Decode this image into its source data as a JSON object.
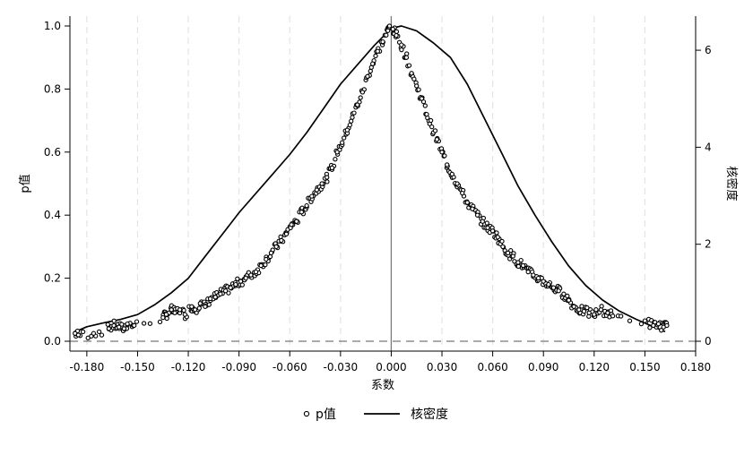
{
  "chart_data": {
    "type": "scatter+line",
    "xlabel": "系数",
    "ylabel_left": "p值",
    "ylabel_right": "核密度",
    "x_range": [
      -0.19,
      0.18
    ],
    "y_left_range": [
      0,
      1.0
    ],
    "y_right_range": [
      0,
      6.5
    ],
    "x_ticks": [
      -0.18,
      -0.15,
      -0.12,
      -0.09,
      -0.06,
      -0.03,
      0.0,
      0.03,
      0.06,
      0.09,
      0.12,
      0.15,
      0.18
    ],
    "x_tick_labels": [
      "-0.180",
      "-0.150",
      "-0.120",
      "-0.090",
      "-0.060",
      "-0.030",
      "0.000",
      "0.030",
      "0.060",
      "0.090",
      "0.120",
      "0.150",
      "0.180"
    ],
    "y_left_ticks": [
      0,
      0.2,
      0.4,
      0.6,
      0.8,
      1.0
    ],
    "y_left_tick_labels": [
      "0.0",
      "0.2",
      "0.4",
      "0.6",
      "0.8",
      "1.0"
    ],
    "y_right_ticks": [
      0,
      2,
      4,
      6
    ],
    "y_right_tick_labels": [
      "0",
      "2",
      "4",
      "6"
    ],
    "grid": "vertical dashed",
    "reference_lines": {
      "vertical_x": 0.0,
      "horizontal_y": 0.0
    },
    "legend": {
      "placement": "bottom-center",
      "entries": [
        {
          "label": "p值",
          "marker": "hollow-circle"
        },
        {
          "label": "核密度",
          "marker": "line"
        }
      ]
    },
    "scatter": {
      "name": "p值",
      "left_samples": [
        [
          -0.187,
          0.025
        ],
        [
          -0.185,
          0.02
        ],
        [
          -0.176,
          0.025
        ],
        [
          -0.167,
          0.04
        ],
        [
          -0.164,
          0.05
        ],
        [
          -0.161,
          0.045
        ],
        [
          -0.158,
          0.04
        ],
        [
          -0.156,
          0.055
        ],
        [
          -0.152,
          0.05
        ],
        [
          -0.135,
          0.075
        ],
        [
          -0.133,
          0.085
        ],
        [
          -0.13,
          0.1
        ],
        [
          -0.128,
          0.09
        ],
        [
          -0.125,
          0.1
        ],
        [
          -0.122,
          0.085
        ],
        [
          -0.118,
          0.11
        ],
        [
          -0.116,
          0.1
        ],
        [
          -0.113,
          0.12
        ],
        [
          -0.11,
          0.11
        ],
        [
          -0.107,
          0.135
        ],
        [
          -0.104,
          0.14
        ],
        [
          -0.101,
          0.15
        ],
        [
          -0.098,
          0.16
        ],
        [
          -0.095,
          0.17
        ],
        [
          -0.092,
          0.18
        ],
        [
          -0.089,
          0.19
        ],
        [
          -0.086,
          0.2
        ],
        [
          -0.083,
          0.21
        ],
        [
          -0.08,
          0.22
        ],
        [
          -0.077,
          0.24
        ],
        [
          -0.074,
          0.26
        ],
        [
          -0.071,
          0.28
        ],
        [
          -0.068,
          0.3
        ],
        [
          -0.065,
          0.32
        ],
        [
          -0.062,
          0.34
        ],
        [
          -0.059,
          0.37
        ],
        [
          -0.056,
          0.38
        ],
        [
          -0.053,
          0.41
        ],
        [
          -0.05,
          0.43
        ],
        [
          -0.047,
          0.46
        ],
        [
          -0.044,
          0.48
        ],
        [
          -0.041,
          0.5
        ],
        [
          -0.038,
          0.52
        ],
        [
          -0.035,
          0.55
        ],
        [
          -0.032,
          0.6
        ],
        [
          -0.029,
          0.63
        ],
        [
          -0.026,
          0.67
        ],
        [
          -0.023,
          0.71
        ],
        [
          -0.02,
          0.75
        ],
        [
          -0.017,
          0.79
        ],
        [
          -0.014,
          0.84
        ],
        [
          -0.011,
          0.88
        ],
        [
          -0.008,
          0.92
        ],
        [
          -0.005,
          0.95
        ],
        [
          -0.002,
          0.985
        ],
        [
          -0.001,
          1.0
        ]
      ],
      "right_samples": [
        [
          0.001,
          0.99
        ],
        [
          0.003,
          0.97
        ],
        [
          0.006,
          0.94
        ],
        [
          0.009,
          0.9
        ],
        [
          0.012,
          0.85
        ],
        [
          0.015,
          0.81
        ],
        [
          0.018,
          0.77
        ],
        [
          0.021,
          0.72
        ],
        [
          0.024,
          0.68
        ],
        [
          0.027,
          0.64
        ],
        [
          0.03,
          0.6
        ],
        [
          0.033,
          0.56
        ],
        [
          0.036,
          0.53
        ],
        [
          0.039,
          0.5
        ],
        [
          0.042,
          0.47
        ],
        [
          0.045,
          0.44
        ],
        [
          0.048,
          0.42
        ],
        [
          0.051,
          0.4
        ],
        [
          0.054,
          0.38
        ],
        [
          0.057,
          0.36
        ],
        [
          0.06,
          0.35
        ],
        [
          0.063,
          0.33
        ],
        [
          0.066,
          0.3
        ],
        [
          0.069,
          0.28
        ],
        [
          0.072,
          0.27
        ],
        [
          0.075,
          0.25
        ],
        [
          0.078,
          0.24
        ],
        [
          0.081,
          0.22
        ],
        [
          0.084,
          0.21
        ],
        [
          0.087,
          0.2
        ],
        [
          0.09,
          0.19
        ],
        [
          0.093,
          0.18
        ],
        [
          0.096,
          0.17
        ],
        [
          0.099,
          0.16
        ],
        [
          0.102,
          0.15
        ],
        [
          0.105,
          0.13
        ],
        [
          0.108,
          0.11
        ],
        [
          0.111,
          0.1
        ],
        [
          0.114,
          0.095
        ],
        [
          0.117,
          0.09
        ],
        [
          0.12,
          0.085
        ],
        [
          0.124,
          0.1
        ],
        [
          0.128,
          0.09
        ],
        [
          0.131,
          0.08
        ],
        [
          0.15,
          0.065
        ],
        [
          0.155,
          0.05
        ],
        [
          0.158,
          0.055
        ],
        [
          0.161,
          0.045
        ],
        [
          0.163,
          0.05
        ]
      ]
    },
    "density": {
      "name": "核密度",
      "points": [
        [
          -0.188,
          0.18
        ],
        [
          -0.18,
          0.3
        ],
        [
          -0.17,
          0.38
        ],
        [
          -0.16,
          0.45
        ],
        [
          -0.15,
          0.55
        ],
        [
          -0.14,
          0.75
        ],
        [
          -0.13,
          1.0
        ],
        [
          -0.12,
          1.3
        ],
        [
          -0.11,
          1.75
        ],
        [
          -0.1,
          2.2
        ],
        [
          -0.09,
          2.65
        ],
        [
          -0.08,
          3.05
        ],
        [
          -0.07,
          3.45
        ],
        [
          -0.06,
          3.85
        ],
        [
          -0.05,
          4.3
        ],
        [
          -0.04,
          4.8
        ],
        [
          -0.03,
          5.3
        ],
        [
          -0.02,
          5.7
        ],
        [
          -0.01,
          6.1
        ],
        [
          0.0,
          6.45
        ],
        [
          0.006,
          6.5
        ],
        [
          0.015,
          6.4
        ],
        [
          0.025,
          6.15
        ],
        [
          0.035,
          5.85
        ],
        [
          0.045,
          5.3
        ],
        [
          0.055,
          4.6
        ],
        [
          0.065,
          3.9
        ],
        [
          0.075,
          3.2
        ],
        [
          0.085,
          2.6
        ],
        [
          0.095,
          2.05
        ],
        [
          0.105,
          1.55
        ],
        [
          0.115,
          1.15
        ],
        [
          0.125,
          0.85
        ],
        [
          0.135,
          0.62
        ],
        [
          0.145,
          0.45
        ],
        [
          0.155,
          0.3
        ],
        [
          0.162,
          0.2
        ]
      ]
    }
  }
}
